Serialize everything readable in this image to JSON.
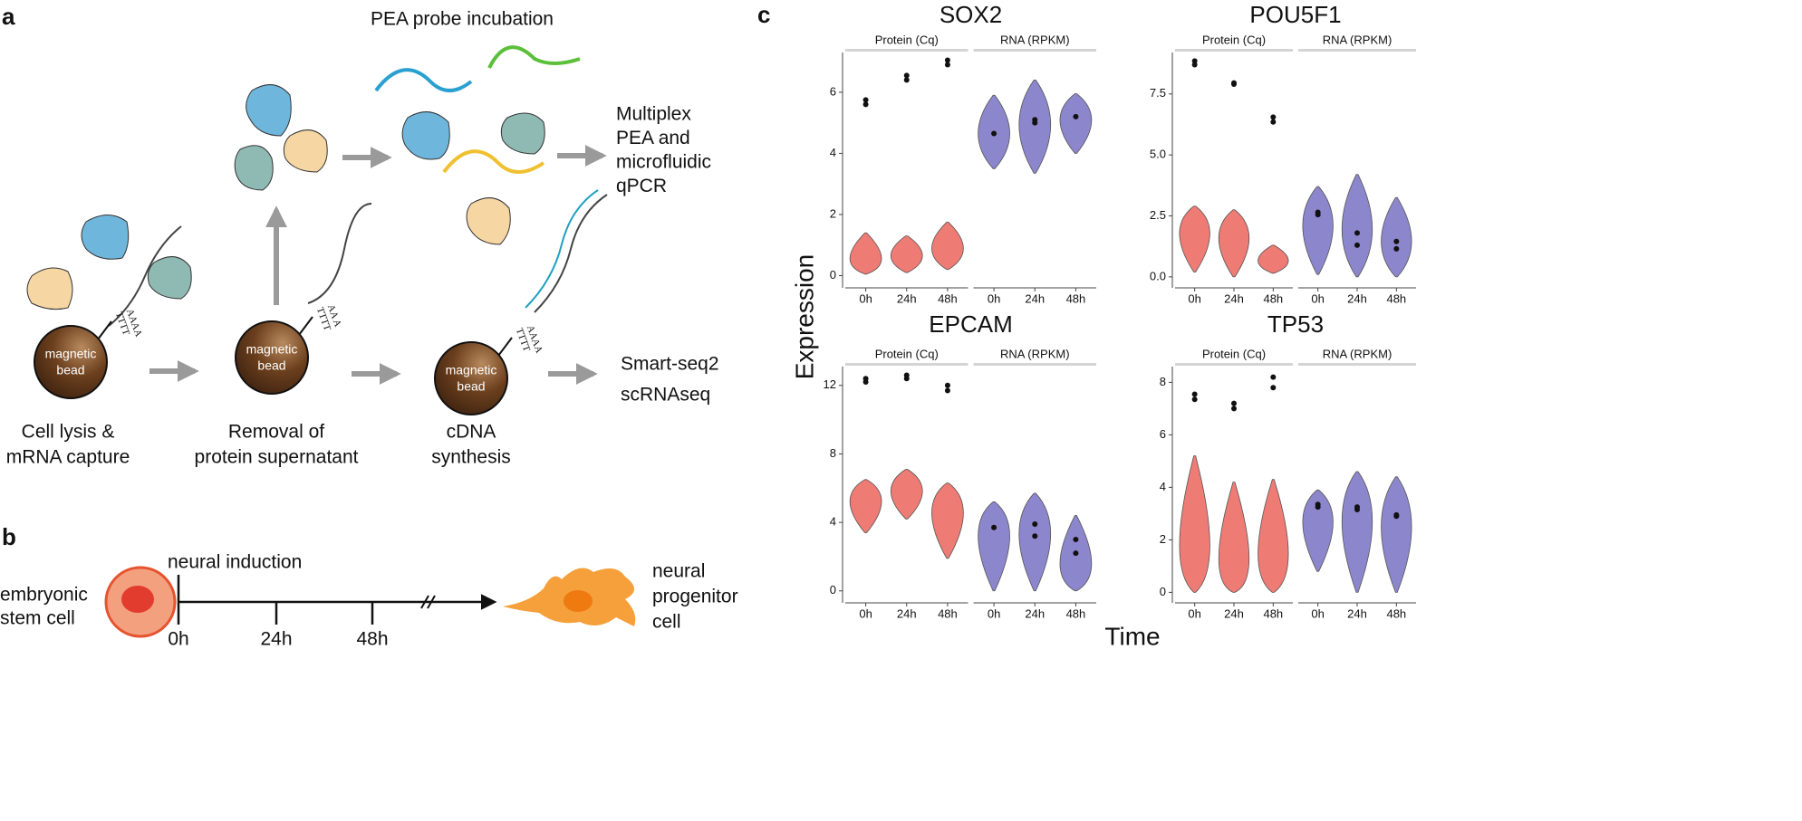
{
  "panel_a": {
    "label": "a",
    "probe_title": "PEA probe incubation",
    "pea_output": [
      "Multiplex",
      "PEA and",
      "microfluidic",
      "qPCR"
    ],
    "seq_output": [
      "Smart-seq2",
      "scRNAseq"
    ],
    "bead_label": [
      "magnetic",
      "bead"
    ],
    "steps": [
      {
        "caption": [
          "Cell lysis &",
          "mRNA capture"
        ],
        "oligo": [
          "TTTT",
          "AAAA"
        ]
      },
      {
        "caption": [
          "Removal of",
          "protein supernatant"
        ],
        "oligo": [
          "TTTT",
          "AA A"
        ]
      },
      {
        "caption": [
          "cDNA",
          "synthesis"
        ],
        "oligo": [
          "TTTT",
          "AAAA"
        ]
      }
    ]
  },
  "panel_b": {
    "label": "b",
    "start_cell": [
      "embryonic",
      "stem cell"
    ],
    "event": "neural induction",
    "timepoints": [
      "0h",
      "24h",
      "48h"
    ],
    "end_cell": [
      "neural",
      "progenitor",
      "cell"
    ]
  },
  "panel_c": {
    "label": "c",
    "y_label": "Expression",
    "x_label": "Time"
  },
  "chart_data": [
    {
      "type": "violin",
      "title": "SOX2",
      "categories": [
        "0h",
        "24h",
        "48h"
      ],
      "ylim": [
        -0.4,
        7.3
      ],
      "yticks": [
        0,
        2,
        4,
        6
      ],
      "series": [
        {
          "name": "Protein (Cq)",
          "color": "#ee7b74",
          "violins": [
            {
              "min": 0.05,
              "mode": 0.4,
              "max": 1.4,
              "points": [
                5.6,
                5.75
              ]
            },
            {
              "min": 0.1,
              "mode": 0.6,
              "max": 1.3,
              "points": [
                6.4,
                6.55
              ]
            },
            {
              "min": 0.2,
              "mode": 0.8,
              "max": 1.75,
              "points": [
                6.9,
                7.05
              ]
            }
          ]
        },
        {
          "name": "RNA (RPKM)",
          "color": "#8c86cc",
          "violins": [
            {
              "min": 3.5,
              "mode": 4.6,
              "max": 5.9,
              "points": [
                4.65
              ]
            },
            {
              "min": 3.35,
              "mode": 5.0,
              "max": 6.4,
              "points": [
                5.0,
                5.1
              ]
            },
            {
              "min": 4.0,
              "mode": 5.2,
              "max": 5.95,
              "points": [
                5.2
              ]
            }
          ]
        }
      ]
    },
    {
      "type": "violin",
      "title": "POU5F1",
      "categories": [
        "0h",
        "24h",
        "48h"
      ],
      "ylim": [
        -0.45,
        9.2
      ],
      "yticks": [
        {
          "value": 0,
          "label": "0.0"
        },
        {
          "value": 2.5,
          "label": "2.5"
        },
        {
          "value": 5,
          "label": "5.0"
        },
        {
          "value": 7.5,
          "label": "7.5"
        }
      ],
      "series": [
        {
          "name": "Protein (Cq)",
          "color": "#ee7b74",
          "violins": [
            {
              "min": 0.2,
              "mode": 2.0,
              "max": 2.9,
              "points": [
                8.7,
                8.85
              ]
            },
            {
              "min": 0.0,
              "mode": 1.8,
              "max": 2.75,
              "points": [
                7.9,
                7.95
              ]
            },
            {
              "min": 0.15,
              "mode": 0.6,
              "max": 1.3,
              "points": [
                6.35,
                6.55
              ]
            }
          ]
        },
        {
          "name": "RNA (RPKM)",
          "color": "#8c86cc",
          "violins": [
            {
              "min": 0.1,
              "mode": 2.3,
              "max": 3.7,
              "points": [
                2.55,
                2.65
              ]
            },
            {
              "min": 0,
              "mode": 1.8,
              "max": 4.2,
              "points": [
                1.3,
                1.8
              ]
            },
            {
              "min": 0,
              "mode": 1.3,
              "max": 3.25,
              "points": [
                1.15,
                1.45
              ]
            }
          ]
        }
      ]
    },
    {
      "type": "violin",
      "title": "EPCAM",
      "categories": [
        "0h",
        "24h",
        "48h"
      ],
      "ylim": [
        -0.7,
        13.1
      ],
      "yticks": [
        0,
        4,
        8,
        12
      ],
      "series": [
        {
          "name": "Protein (Cq)",
          "color": "#ee7b74",
          "violins": [
            {
              "min": 3.4,
              "mode": 5.5,
              "max": 6.5,
              "points": [
                12.2,
                12.4
              ]
            },
            {
              "min": 4.2,
              "mode": 6.0,
              "max": 7.1,
              "points": [
                12.4,
                12.6
              ]
            },
            {
              "min": 1.9,
              "mode": 5.0,
              "max": 6.3,
              "points": [
                11.7,
                12.0
              ]
            }
          ]
        },
        {
          "name": "RNA (RPKM)",
          "color": "#8c86cc",
          "violins": [
            {
              "min": 0,
              "mode": 3.8,
              "max": 5.2,
              "points": [
                3.7
              ]
            },
            {
              "min": 0,
              "mode": 3.8,
              "max": 5.7,
              "points": [
                3.2,
                3.9
              ]
            },
            {
              "min": 0,
              "mode": 1.0,
              "max": 4.4,
              "points": [
                2.2,
                3.0
              ]
            }
          ]
        }
      ]
    },
    {
      "type": "violin",
      "title": "TP53",
      "categories": [
        "0h",
        "24h",
        "48h"
      ],
      "ylim": [
        -0.4,
        8.6
      ],
      "yticks": [
        0,
        2,
        4,
        6,
        8
      ],
      "series": [
        {
          "name": "Protein (Cq)",
          "color": "#ee7b74",
          "violins": [
            {
              "min": 0,
              "mode": 1.0,
              "max": 5.2,
              "points": [
                7.35,
                7.55
              ]
            },
            {
              "min": 0,
              "mode": 0.5,
              "max": 4.2,
              "points": [
                7.0,
                7.2
              ]
            },
            {
              "min": 0,
              "mode": 0.8,
              "max": 4.3,
              "points": [
                7.8,
                8.2
              ]
            }
          ]
        },
        {
          "name": "RNA (RPKM)",
          "color": "#8c86cc",
          "violins": [
            {
              "min": 0.8,
              "mode": 3.0,
              "max": 3.9,
              "points": [
                3.25,
                3.35
              ]
            },
            {
              "min": 0,
              "mode": 3.1,
              "max": 4.6,
              "points": [
                3.15,
                3.25
              ]
            },
            {
              "min": 0,
              "mode": 2.8,
              "max": 4.4,
              "points": [
                2.9,
                2.95
              ]
            }
          ]
        }
      ]
    }
  ]
}
